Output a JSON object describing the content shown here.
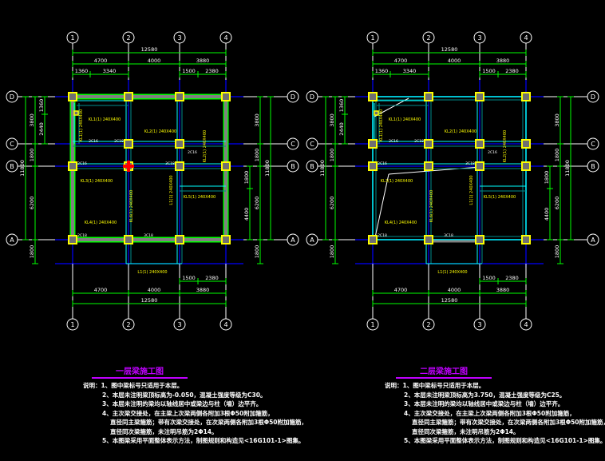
{
  "colors": {
    "background": "#000000",
    "grid": "#0000ff",
    "dimension": "#00ff00",
    "beam_outline": "#00ffff",
    "column": "#ffff00",
    "label": "#ffff00",
    "title": "#c000ff",
    "text": "#ffffff"
  },
  "axes": {
    "vertical": [
      "1",
      "2",
      "3",
      "4"
    ],
    "horizontal": [
      "D",
      "C",
      "B",
      "A"
    ]
  },
  "dimensions": {
    "top_total": "12580",
    "top_spans": [
      "4700",
      "4000",
      "3880"
    ],
    "top_sub": [
      "1360",
      "3340",
      "1500",
      "2380"
    ],
    "bottom_total": "12580",
    "bottom_spans": [
      "4700",
      "4000",
      "3880"
    ],
    "bottom_sub": [
      "1500",
      "2380"
    ],
    "left_total": "11800",
    "left_spans": [
      "3800",
      "1800",
      "6200"
    ],
    "left_sub": [
      "1360",
      "2440"
    ],
    "left_below": "1800",
    "right_total": "11800",
    "right_spans": [
      "3800",
      "1800",
      "6200"
    ],
    "right_sub": [
      "1800",
      "4400"
    ],
    "right_below": "1800"
  },
  "beam_labels": [
    "KL1(1) 240X400",
    "KL2(1) 240X400",
    "KL3(1) 240X400",
    "KL4(1) 240X400",
    "KL5(1) 240X400",
    "KL6(1) 240X400",
    "L1(1) 240X400",
    "2C16",
    "2C18",
    "3C18"
  ],
  "plans": [
    {
      "title": "一层梁施工图",
      "notes": [
        "说明：1、图中梁标号只适用于本层。",
        "2、本层未注明梁顶标高为-0.050，混凝土强度等级为C30。",
        "3、本层未注明的梁均以轴线居中或梁边与柱（墙）边平齐。",
        "4、主次梁交接处，在主梁上次梁两侧各附加3根Φ50附加箍筋，",
        "直径同主梁箍筋；带有次梁交接处，在次梁两侧各附加3根Φ50附加箍筋，",
        "直径同次梁箍筋，未注明吊筋为2Φ14。",
        "5、本图梁采用平面整体表示方法，制图规则和构造见<16G101-1>图集。"
      ]
    },
    {
      "title": "二层梁施工图",
      "notes": [
        "说明：1、图中梁标号只适用于本层。",
        "2、本层未注明梁顶标高为3.750，混凝土强度等级为C25。",
        "3、本层未注明的梁均以轴线居中或梁边与柱（墙）边平齐。",
        "4、主次梁交接处，在主梁上次梁两侧各附加3根Φ50附加箍筋，",
        "直径同主梁箍筋；带有次梁交接处，在次梁两侧各附加3根Φ50附加箍筋，",
        "直径同次梁箍筋，未注明吊筋为2Φ14。",
        "5、本图梁采用平面整体表示方法，制图规则和构造见<16G101-1>图集。"
      ]
    }
  ]
}
